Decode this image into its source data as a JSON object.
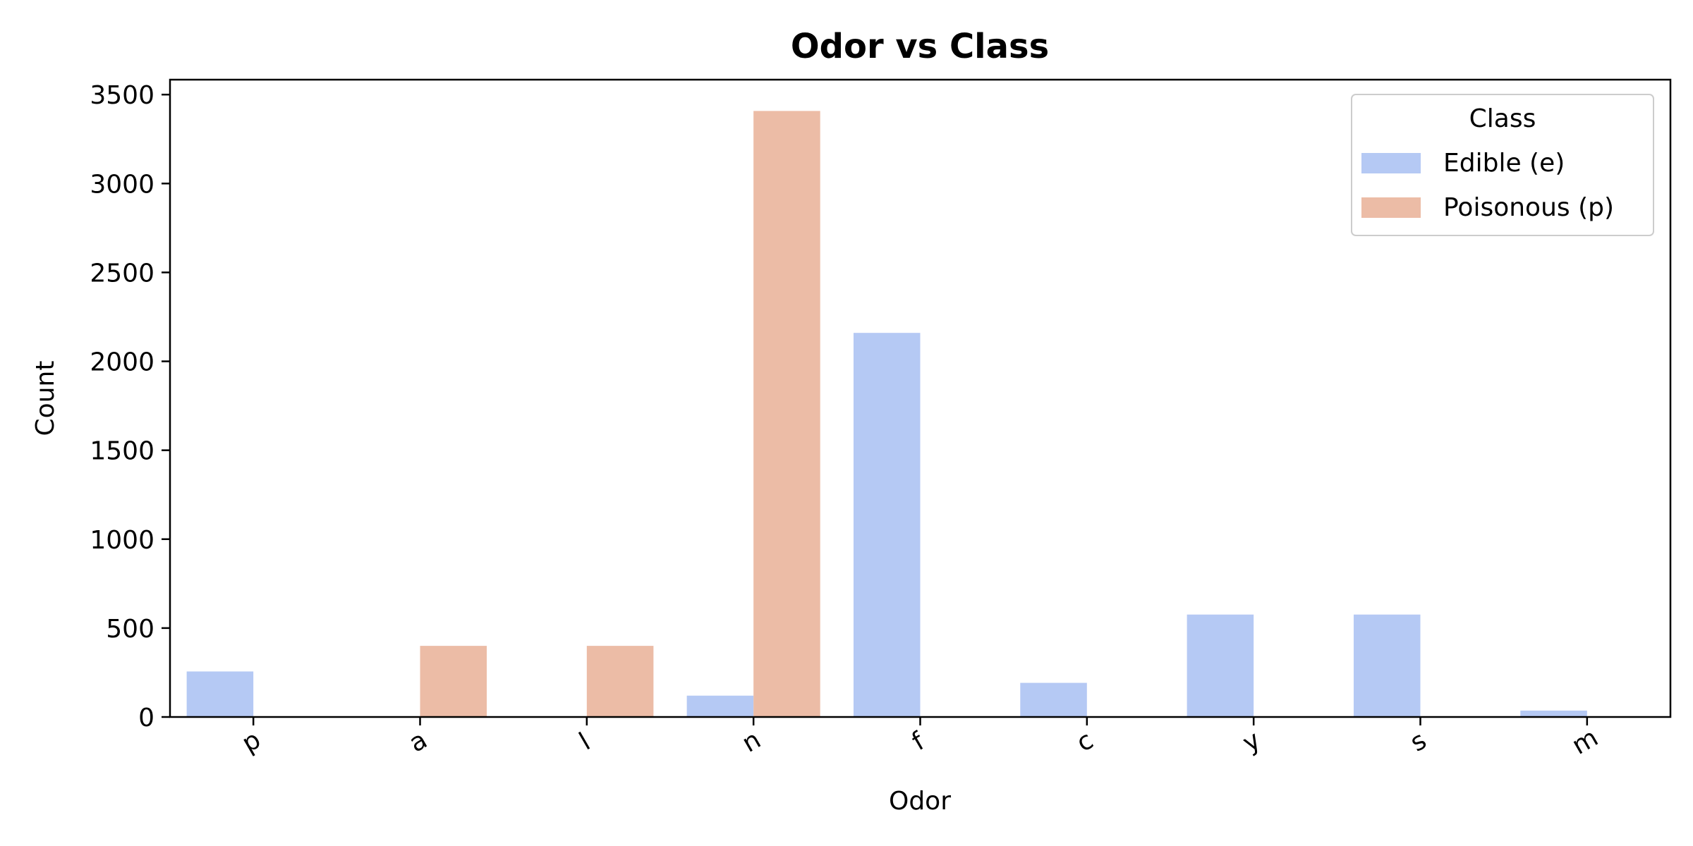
{
  "chart_data": {
    "type": "bar",
    "title": "Odor vs Class",
    "xlabel": "Odor",
    "ylabel": "Count",
    "categories": [
      "p",
      "a",
      "l",
      "n",
      "f",
      "c",
      "y",
      "s",
      "m"
    ],
    "ylim": [
      0,
      3584
    ],
    "yticks": [
      "0",
      "500",
      "1000",
      "1500",
      "2000",
      "2500",
      "3000",
      "3500"
    ],
    "legend": {
      "title": "Class",
      "placement": "upper right"
    },
    "series": [
      {
        "name": "Edible (e)",
        "color": "#b5c9f4",
        "values": [
          256,
          0,
          0,
          120,
          2160,
          192,
          576,
          576,
          36
        ]
      },
      {
        "name": "Poisonous (p)",
        "color": "#ecbca6",
        "values": [
          0,
          400,
          400,
          3408,
          0,
          0,
          0,
          0,
          0
        ]
      }
    ]
  }
}
